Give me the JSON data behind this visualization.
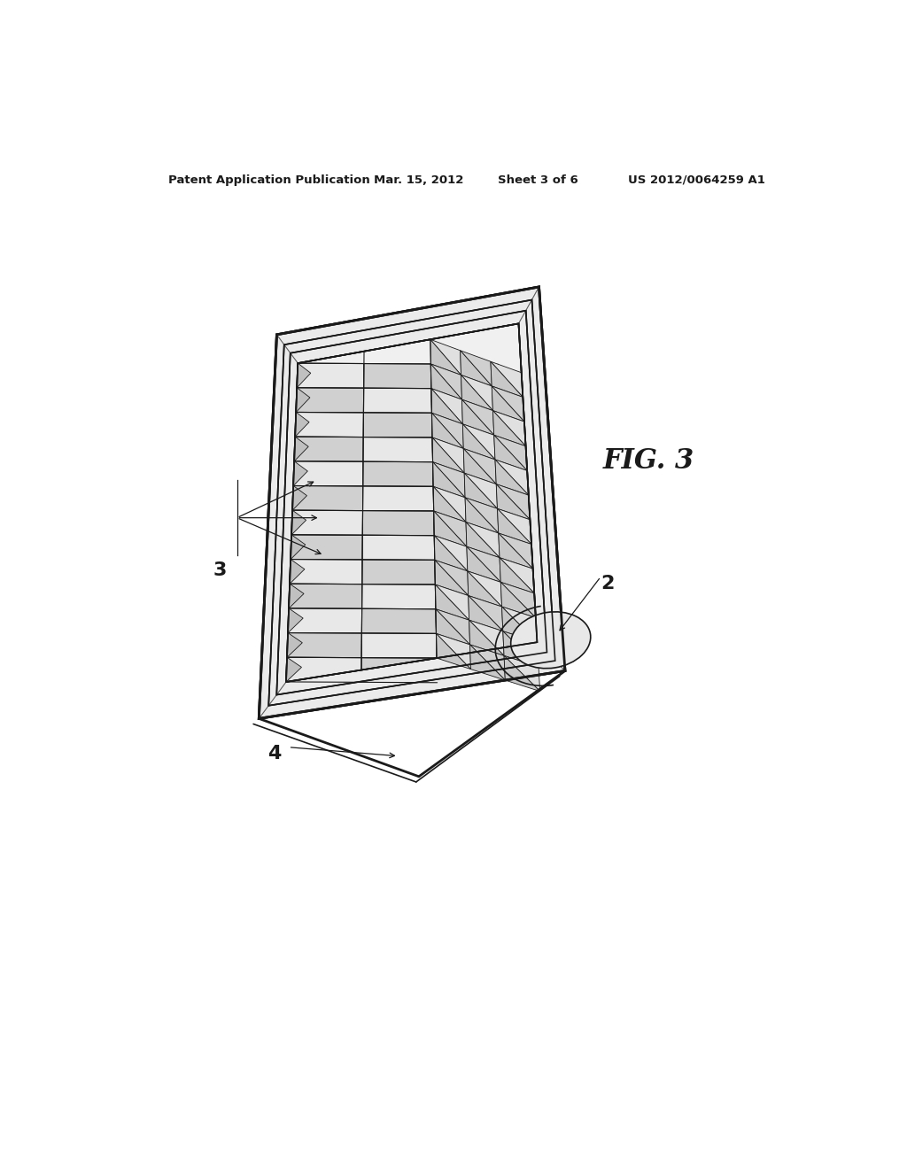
{
  "header_left": "Patent Application Publication",
  "header_mid": "Mar. 15, 2012  Sheet 3 of 6",
  "header_right": "US 2012/0064259 A1",
  "fig_label": "FIG. 3",
  "bg_color": "#ffffff",
  "line_color": "#1a1a1a",
  "fill_white": "#ffffff",
  "fill_light": "#f0f0f0",
  "fill_mid": "#d8d8d8",
  "fill_dark": "#b0b0b0",
  "lw_outer": 2.0,
  "lw_inner": 1.2,
  "lw_seg": 0.8,
  "n_seg_along": 13,
  "n_seg_across": 2,
  "label_fontsize": 16,
  "fig_label_fontsize": 22
}
